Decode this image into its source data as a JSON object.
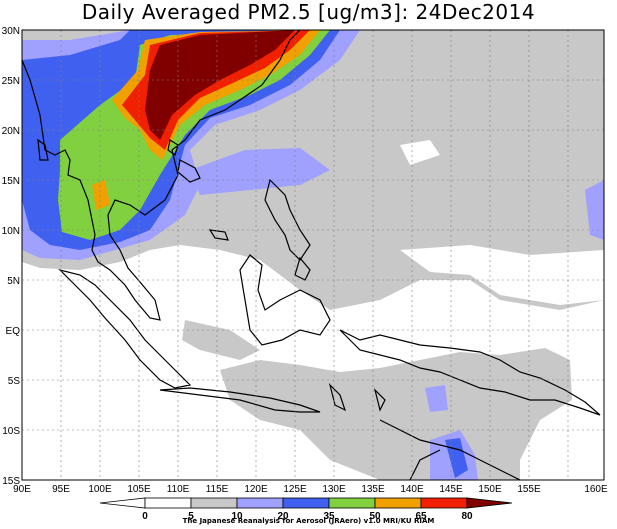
{
  "title": "Daily Averaged PM2.5 [ug/m3]: 24Dec2014",
  "footer": "The Japanese Reanalysis for Aerosol (JRAero) v1.0 MRI/KU RIAM",
  "lon_ticks": [
    "90E",
    "95E",
    "100E",
    "105E",
    "110E",
    "115E",
    "120E",
    "125E",
    "130E",
    "135E",
    "140E",
    "145E",
    "150E",
    "155E",
    "160E"
  ],
  "lat_ticks": [
    "30N",
    "25N",
    "20N",
    "15N",
    "10N",
    "5N",
    "EQ",
    "5S",
    "10S",
    "15S"
  ],
  "colorbar": {
    "levels": [
      "0",
      "5",
      "10",
      "20",
      "35",
      "50",
      "65",
      "80"
    ],
    "colors": [
      "#ffffff",
      "#ffffff",
      "#c8c8c8",
      "#a0a0ff",
      "#4060f0",
      "#80d040",
      "#f0a000",
      "#f02000",
      "#800000"
    ]
  }
}
